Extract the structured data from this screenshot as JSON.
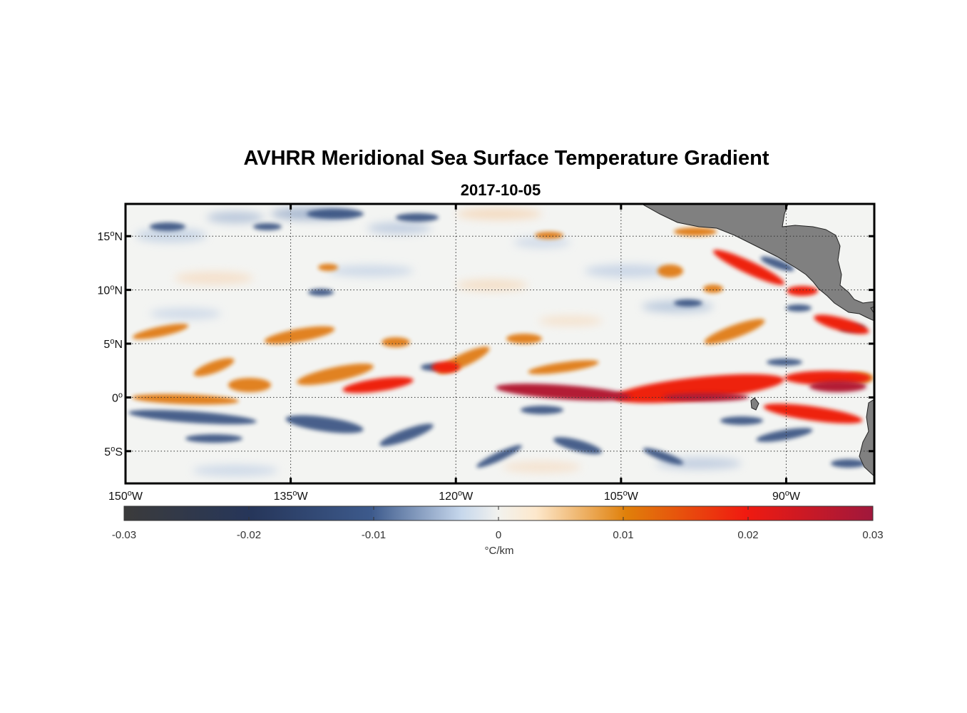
{
  "title": "AVHRR Meridional Sea Surface Temperature Gradient",
  "date": "2017-10-05",
  "map": {
    "lon_range": [
      -150,
      -82
    ],
    "lat_range": [
      -8,
      18
    ],
    "lat_ticks": [
      {
        "value": 15,
        "num": "15",
        "hem": "N"
      },
      {
        "value": 10,
        "num": "10",
        "hem": "N"
      },
      {
        "value": 5,
        "num": "5",
        "hem": "N"
      },
      {
        "value": 0,
        "num": "0",
        "hem": ""
      },
      {
        "value": -5,
        "num": "5",
        "hem": "S"
      }
    ],
    "lon_ticks": [
      {
        "value": -150,
        "num": "150",
        "hem": "W"
      },
      {
        "value": -135,
        "num": "135",
        "hem": "W"
      },
      {
        "value": -120,
        "num": "120",
        "hem": "W"
      },
      {
        "value": -105,
        "num": "105",
        "hem": "W"
      },
      {
        "value": -90,
        "num": "90",
        "hem": "W"
      }
    ],
    "land_color": "#808080",
    "gridline_style": "dotted"
  },
  "colorbar": {
    "min": -0.03,
    "max": 0.03,
    "ticks": [
      {
        "value": -0.03,
        "label": "-0.03"
      },
      {
        "value": -0.02,
        "label": "-0.02"
      },
      {
        "value": -0.01,
        "label": "-0.01"
      },
      {
        "value": 0,
        "label": "0"
      },
      {
        "value": 0.01,
        "label": "0.01"
      },
      {
        "value": 0.02,
        "label": "0.02"
      },
      {
        "value": 0.03,
        "label": "0.03"
      }
    ],
    "units": "°C/km",
    "colors": [
      "#3b3b3b",
      "#2a3c62",
      "#405d8e",
      "#c8d8ec",
      "#fdf3e3",
      "#e0800a",
      "#f02010",
      "#a01c3c"
    ]
  },
  "features": {
    "equatorial_front": {
      "description_value": "positive gradient band near equator",
      "color": "#c41830"
    },
    "north_band": {
      "color": "#e27a14"
    },
    "south_streaks": {
      "color": "#3f5a88"
    }
  }
}
